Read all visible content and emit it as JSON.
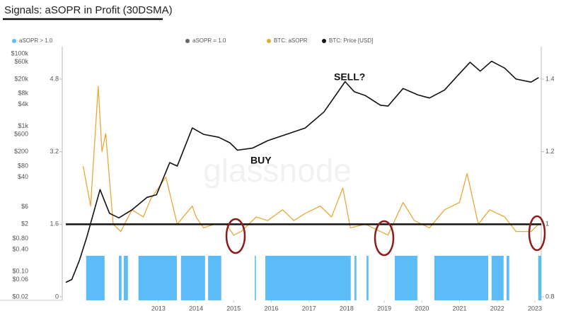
{
  "chart_data": {
    "type": "line",
    "title": "Signals: aSOPR in Profit (30DSMA)",
    "watermark": "glassnode",
    "annotations": [
      "SELL?",
      "BUY"
    ],
    "xlim": [
      2010.54,
      2023.17
    ],
    "xticks": [
      2013,
      2014,
      2015,
      2016,
      2017,
      2018,
      2019,
      2020,
      2021,
      2022,
      2023
    ],
    "ylog": true,
    "ylim": [
      0.02,
      100000
    ],
    "yticks": [
      {
        "value": 100000,
        "label": "$100k"
      },
      {
        "value": 60000,
        "label": "$60k"
      },
      {
        "value": 20000,
        "label": "$20k"
      },
      {
        "value": 8000,
        "label": "$8k"
      },
      {
        "value": 4000,
        "label": "$4k"
      },
      {
        "value": 1000,
        "label": "$1k"
      },
      {
        "value": 600,
        "label": "$600"
      },
      {
        "value": 200,
        "label": "$200"
      },
      {
        "value": 80,
        "label": "$80"
      },
      {
        "value": 40,
        "label": "$40"
      },
      {
        "value": 6,
        "label": "$6"
      },
      {
        "value": 2,
        "label": "$2"
      },
      {
        "value": 0.8,
        "label": "$0.80"
      },
      {
        "value": 0.4,
        "label": "$0.40"
      },
      {
        "value": 0.1,
        "label": "$0.10"
      },
      {
        "value": 0.06,
        "label": "$0.06"
      },
      {
        "value": 0.02,
        "label": "$0.02"
      }
    ],
    "y3lim": [
      0,
      5.36
    ],
    "y3ticks": [
      4.8,
      3.2,
      1.6,
      0
    ],
    "y2lim": [
      0.8,
      1.47
    ],
    "y2ticks": [
      1.4,
      1.2,
      1,
      0.8
    ],
    "series": [
      {
        "name": "aSOPR > 1.0",
        "color": "#5bbcf8",
        "kind": "intervals",
        "intervals": [
          [
            2011.08,
            2011.57
          ],
          [
            2011.95,
            2012.02
          ],
          [
            2012.08,
            2012.19
          ],
          [
            2012.47,
            2013.49
          ],
          [
            2013.6,
            2014.24
          ],
          [
            2014.32,
            2014.67
          ],
          [
            2015.56,
            2015.59
          ],
          [
            2015.84,
            2018.11
          ],
          [
            2018.21,
            2018.26
          ],
          [
            2018.53,
            2018.58
          ],
          [
            2019.28,
            2019.88
          ],
          [
            2020.33,
            2021.76
          ],
          [
            2021.85,
            2022.17
          ],
          [
            2022.25,
            2022.32
          ],
          [
            2023.09,
            2023.17
          ]
        ]
      },
      {
        "name": "aSOPR = 1.0",
        "color": "#111111",
        "kind": "level",
        "axis": "y2",
        "value": 1
      },
      {
        "name": "BTC: aSOPR",
        "color": "#e8a838",
        "axis": "y2",
        "x": [
          2011.0,
          2011.2,
          2011.4,
          2011.5,
          2011.6,
          2011.8,
          2012.0,
          2012.3,
          2012.6,
          2012.8,
          2013.2,
          2013.5,
          2013.9,
          2014.0,
          2014.2,
          2014.5,
          2014.8,
          2015.0,
          2015.2,
          2015.6,
          2015.9,
          2016.3,
          2016.6,
          2016.9,
          2017.3,
          2017.6,
          2017.9,
          2018.1,
          2018.5,
          2018.9,
          2019.1,
          2019.5,
          2019.8,
          2020.2,
          2020.6,
          2021.0,
          2021.2,
          2021.5,
          2021.8,
          2022.2,
          2022.5,
          2022.9,
          2023.1
        ],
        "values": [
          1.16,
          1.05,
          1.38,
          1.2,
          1.25,
          1.0,
          0.98,
          1.04,
          1.02,
          1.07,
          1.13,
          1.0,
          1.05,
          1.02,
          0.99,
          1.0,
          1.0,
          0.97,
          0.98,
          1.02,
          1.01,
          1.04,
          1.01,
          1.03,
          1.05,
          1.02,
          1.1,
          0.99,
          1.0,
          0.98,
          0.97,
          1.06,
          1.01,
          0.99,
          1.04,
          1.06,
          1.14,
          1.0,
          1.04,
          1.02,
          0.98,
          0.98,
          1.0
        ]
      },
      {
        "name": "BTC: Price [USD]",
        "color": "#111111",
        "axis": "y",
        "x": [
          2010.54,
          2010.7,
          2010.9,
          2011.1,
          2011.45,
          2011.7,
          2011.95,
          2012.3,
          2012.7,
          2012.95,
          2013.3,
          2013.5,
          2013.9,
          2014.2,
          2014.6,
          2014.9,
          2015.1,
          2015.5,
          2015.9,
          2016.4,
          2016.9,
          2017.4,
          2017.96,
          2018.2,
          2018.5,
          2018.9,
          2019.1,
          2019.5,
          2019.9,
          2020.2,
          2020.6,
          2020.95,
          2021.28,
          2021.55,
          2021.85,
          2022.2,
          2022.5,
          2022.9,
          2023.1
        ],
        "values": [
          0.05,
          0.06,
          0.2,
          0.9,
          18,
          4,
          3,
          5,
          11,
          13,
          100,
          80,
          900,
          600,
          500,
          350,
          220,
          250,
          400,
          600,
          900,
          2500,
          17000,
          9000,
          7000,
          3800,
          3600,
          11000,
          7300,
          6000,
          10000,
          25000,
          58000,
          33000,
          62000,
          40000,
          20000,
          16500,
          22000
        ]
      }
    ]
  }
}
